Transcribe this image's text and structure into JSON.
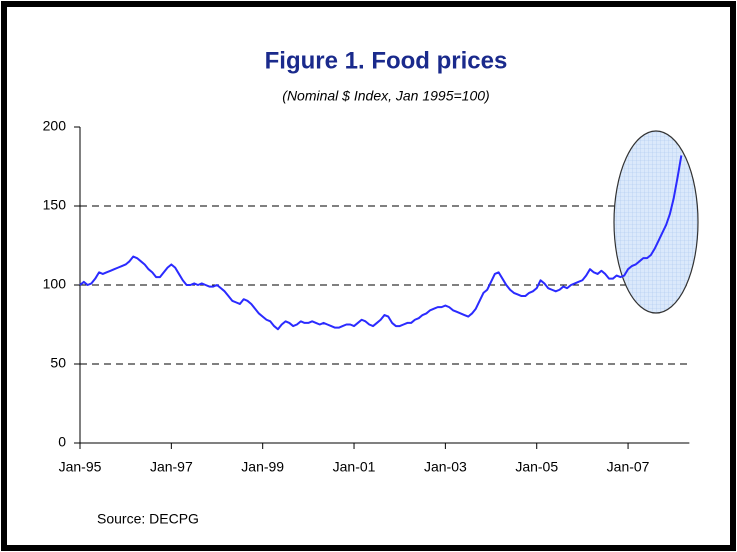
{
  "chart_data": {
    "type": "line",
    "title": "Figure 1. Food prices",
    "subtitle": "(Nominal $ Index, Jan 1995=100)",
    "source": "Source: DECPG",
    "x": [
      "1995-01",
      "1995-02",
      "1995-03",
      "1995-04",
      "1995-05",
      "1995-06",
      "1995-07",
      "1995-08",
      "1995-09",
      "1995-10",
      "1995-11",
      "1995-12",
      "1996-01",
      "1996-02",
      "1996-03",
      "1996-04",
      "1996-05",
      "1996-06",
      "1996-07",
      "1996-08",
      "1996-09",
      "1996-10",
      "1996-11",
      "1996-12",
      "1997-01",
      "1997-02",
      "1997-03",
      "1997-04",
      "1997-05",
      "1997-06",
      "1997-07",
      "1997-08",
      "1997-09",
      "1997-10",
      "1997-11",
      "1997-12",
      "1998-01",
      "1998-02",
      "1998-03",
      "1998-04",
      "1998-05",
      "1998-06",
      "1998-07",
      "1998-08",
      "1998-09",
      "1998-10",
      "1998-11",
      "1998-12",
      "1999-01",
      "1999-02",
      "1999-03",
      "1999-04",
      "1999-05",
      "1999-06",
      "1999-07",
      "1999-08",
      "1999-09",
      "1999-10",
      "1999-11",
      "1999-12",
      "2000-01",
      "2000-02",
      "2000-03",
      "2000-04",
      "2000-05",
      "2000-06",
      "2000-07",
      "2000-08",
      "2000-09",
      "2000-10",
      "2000-11",
      "2000-12",
      "2001-01",
      "2001-02",
      "2001-03",
      "2001-04",
      "2001-05",
      "2001-06",
      "2001-07",
      "2001-08",
      "2001-09",
      "2001-10",
      "2001-11",
      "2001-12",
      "2002-01",
      "2002-02",
      "2002-03",
      "2002-04",
      "2002-05",
      "2002-06",
      "2002-07",
      "2002-08",
      "2002-09",
      "2002-10",
      "2002-11",
      "2002-12",
      "2003-01",
      "2003-02",
      "2003-03",
      "2003-04",
      "2003-05",
      "2003-06",
      "2003-07",
      "2003-08",
      "2003-09",
      "2003-10",
      "2003-11",
      "2003-12",
      "2004-01",
      "2004-02",
      "2004-03",
      "2004-04",
      "2004-05",
      "2004-06",
      "2004-07",
      "2004-08",
      "2004-09",
      "2004-10",
      "2004-11",
      "2004-12",
      "2005-01",
      "2005-02",
      "2005-03",
      "2005-04",
      "2005-05",
      "2005-06",
      "2005-07",
      "2005-08",
      "2005-09",
      "2005-10",
      "2005-11",
      "2005-12",
      "2006-01",
      "2006-02",
      "2006-03",
      "2006-04",
      "2006-05",
      "2006-06",
      "2006-07",
      "2006-08",
      "2006-09",
      "2006-10",
      "2006-11",
      "2006-12",
      "2007-01",
      "2007-02",
      "2007-03",
      "2007-04",
      "2007-05",
      "2007-06",
      "2007-07",
      "2007-08",
      "2007-09",
      "2007-10",
      "2007-11",
      "2007-12",
      "2008-01",
      "2008-02",
      "2008-03"
    ],
    "series": [
      {
        "name": "Food prices",
        "color": "#2b2bff",
        "values": [
          100,
          102,
          100,
          101,
          104,
          108,
          107,
          108,
          109,
          110,
          111,
          112,
          113,
          115,
          118,
          117,
          115,
          113,
          110,
          108,
          105,
          105,
          108,
          111,
          113,
          111,
          107,
          103,
          100,
          100,
          101,
          100,
          101,
          100,
          99,
          99,
          100,
          98,
          96,
          93,
          90,
          89,
          88,
          91,
          90,
          88,
          85,
          82,
          80,
          78,
          77,
          74,
          72,
          75,
          77,
          76,
          74,
          75,
          77,
          76,
          76,
          77,
          76,
          75,
          76,
          75,
          74,
          73,
          73,
          74,
          75,
          75,
          74,
          76,
          78,
          77,
          75,
          74,
          76,
          78,
          81,
          80,
          76,
          74,
          74,
          75,
          76,
          76,
          78,
          79,
          81,
          82,
          84,
          85,
          86,
          86,
          87,
          86,
          84,
          83,
          82,
          81,
          80,
          82,
          85,
          90,
          95,
          97,
          102,
          107,
          108,
          104,
          100,
          97,
          95,
          94,
          93,
          93,
          95,
          96,
          98,
          103,
          101,
          98,
          97,
          96,
          97,
          99,
          98,
          100,
          101,
          102,
          103,
          106,
          110,
          108,
          107,
          109,
          107,
          104,
          104,
          106,
          105,
          106,
          110,
          112,
          113,
          115,
          117,
          117,
          119,
          123,
          128,
          133,
          138,
          145,
          155,
          168,
          182
        ]
      }
    ],
    "xticks": [
      {
        "value": "1995-01",
        "label": "Jan-95"
      },
      {
        "value": "1997-01",
        "label": "Jan-97"
      },
      {
        "value": "1999-01",
        "label": "Jan-99"
      },
      {
        "value": "2001-01",
        "label": "Jan-01"
      },
      {
        "value": "2003-01",
        "label": "Jan-03"
      },
      {
        "value": "2005-01",
        "label": "Jan-05"
      },
      {
        "value": "2007-01",
        "label": "Jan-07"
      }
    ],
    "ylim": [
      0,
      200
    ],
    "yticks": [
      0,
      50,
      100,
      150,
      200
    ],
    "grid": true
  }
}
